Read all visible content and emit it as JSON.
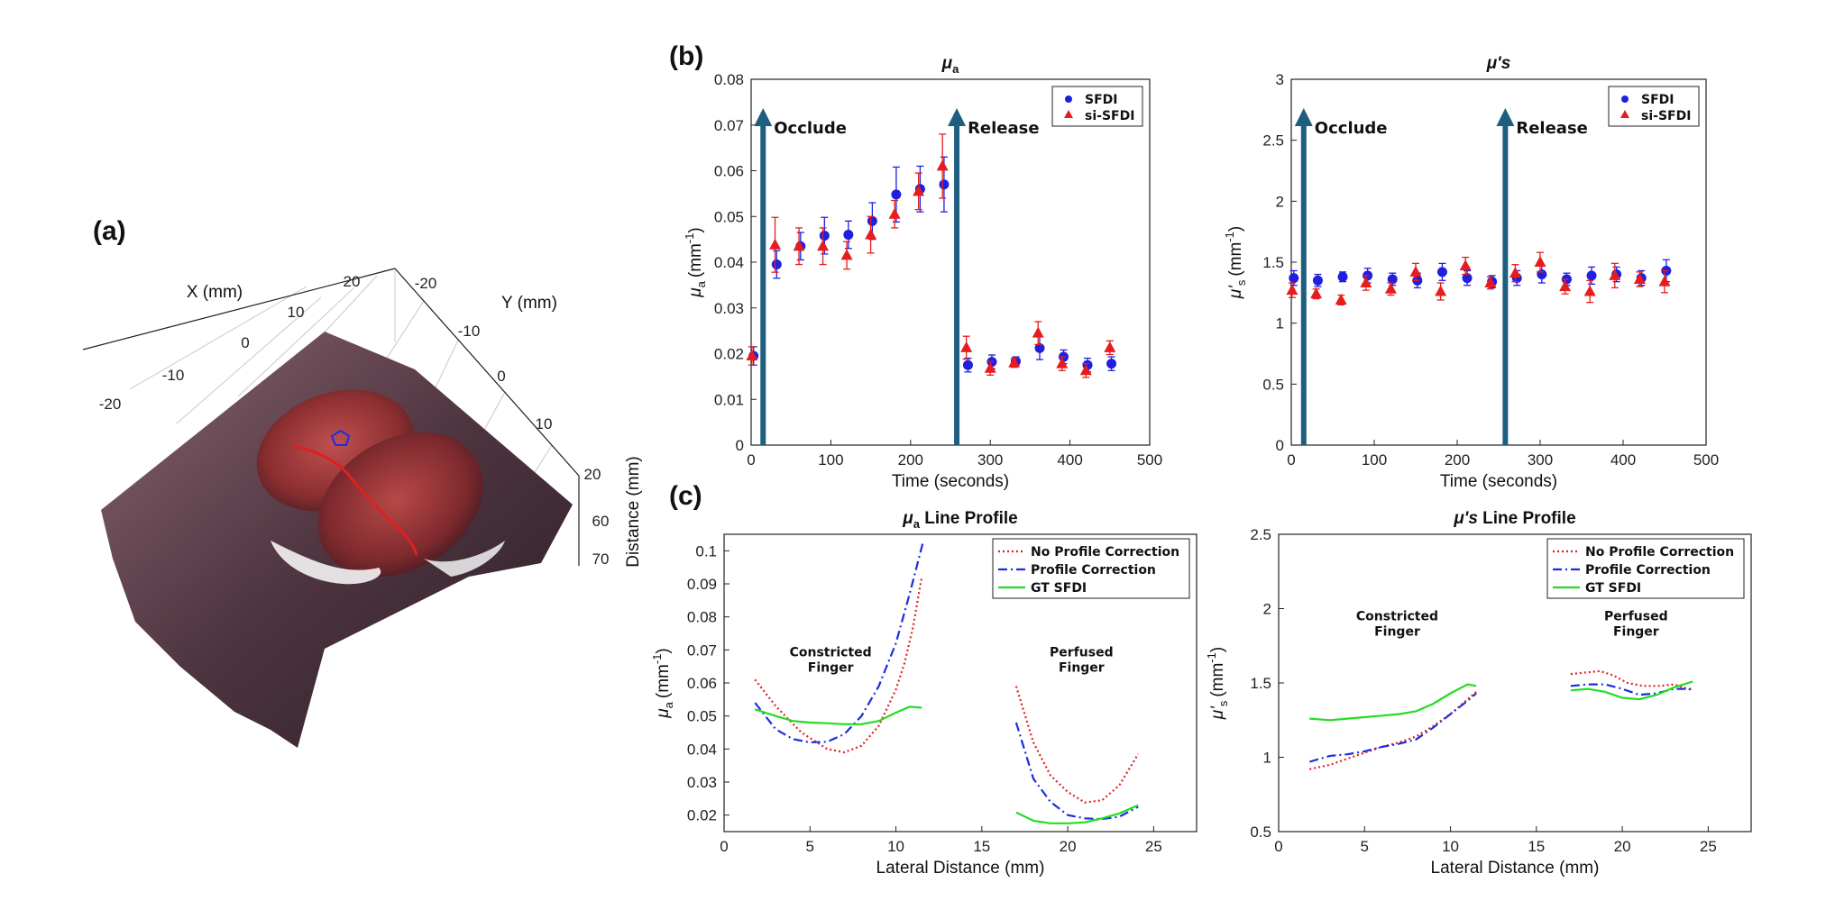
{
  "figure": {
    "panel_labels": [
      "(a)",
      "(b)",
      "(c)"
    ]
  },
  "panel_a": {
    "x_label": "X (mm)",
    "y_label": "Y (mm)",
    "z_label": "Distance (mm)",
    "x_ticks": [
      "-20",
      "-10",
      "0",
      "10",
      "20"
    ],
    "y_ticks": [
      "-20",
      "-10",
      "0",
      "10",
      "20"
    ],
    "z_ticks": [
      "60",
      "70"
    ]
  },
  "colors": {
    "sfdi": "#1f1fe0",
    "si_sfdi": "#e81c1c",
    "arrow": "#1e5f80",
    "no_corr": "#e02020",
    "corr": "#1a2ee0",
    "gt": "#22dd22"
  },
  "chart_data": [
    {
      "id": "b-left",
      "type": "scatter",
      "title_main": "μ",
      "title_sub": "a",
      "xlabel": "Time (seconds)",
      "ylabel_main": "μ",
      "ylabel_sub": "a",
      "ylabel_unit": "(mm",
      "ylabel_exp": "-1",
      "ylabel_close": ")",
      "xlim": [
        0,
        500
      ],
      "ylim": [
        0,
        0.08
      ],
      "xticks": [
        0,
        100,
        200,
        300,
        400,
        500
      ],
      "yticks": [
        0,
        0.01,
        0.02,
        0.03,
        0.04,
        0.05,
        0.06,
        0.07,
        0.08
      ],
      "legend": [
        "SFDI",
        "si-SFDI"
      ],
      "annotations": [
        {
          "text": "Occlude",
          "x": 15
        },
        {
          "text": "Release",
          "x": 258
        }
      ],
      "series": [
        {
          "name": "SFDI",
          "x": [
            3,
            32,
            62,
            92,
            122,
            152,
            182,
            212,
            242,
            272,
            302,
            332,
            362,
            392,
            422,
            452
          ],
          "y": [
            0.0195,
            0.0395,
            0.0435,
            0.0458,
            0.046,
            0.049,
            0.0548,
            0.056,
            0.057,
            0.0175,
            0.0182,
            0.0183,
            0.0212,
            0.0193,
            0.0175,
            0.0178
          ],
          "err": [
            0.002,
            0.003,
            0.003,
            0.004,
            0.003,
            0.004,
            0.006,
            0.005,
            0.006,
            0.0015,
            0.0015,
            0.001,
            0.0025,
            0.0015,
            0.0015,
            0.0015
          ]
        },
        {
          "name": "si-SFDI",
          "x": [
            1,
            30,
            60,
            90,
            120,
            150,
            180,
            210,
            240,
            270,
            300,
            330,
            360,
            390,
            420,
            450
          ],
          "y": [
            0.0195,
            0.0438,
            0.0435,
            0.0435,
            0.0415,
            0.046,
            0.0505,
            0.0555,
            0.061,
            0.0213,
            0.0168,
            0.018,
            0.0245,
            0.0178,
            0.0163,
            0.0213
          ],
          "err": [
            0.002,
            0.006,
            0.004,
            0.004,
            0.003,
            0.004,
            0.003,
            0.004,
            0.007,
            0.0025,
            0.0015,
            0.001,
            0.0025,
            0.0015,
            0.0015,
            0.0015
          ]
        }
      ]
    },
    {
      "id": "b-right",
      "type": "scatter",
      "title_main": "μ's",
      "title_sub": "",
      "xlabel": "Time (seconds)",
      "ylabel_main": "μ'",
      "ylabel_sub": "s",
      "ylabel_unit": "(mm",
      "ylabel_exp": "-1",
      "ylabel_close": ")",
      "xlim": [
        0,
        500
      ],
      "ylim": [
        0,
        3
      ],
      "xticks": [
        0,
        100,
        200,
        300,
        400,
        500
      ],
      "yticks": [
        0,
        0.5,
        1,
        1.5,
        2,
        2.5,
        3
      ],
      "legend": [
        "SFDI",
        "si-SFDI"
      ],
      "annotations": [
        {
          "text": "Occlude",
          "x": 15
        },
        {
          "text": "Release",
          "x": 258
        }
      ],
      "series": [
        {
          "name": "SFDI",
          "x": [
            3,
            32,
            62,
            92,
            122,
            152,
            182,
            212,
            242,
            272,
            302,
            332,
            362,
            392,
            422,
            452
          ],
          "y": [
            1.37,
            1.35,
            1.38,
            1.39,
            1.36,
            1.35,
            1.42,
            1.37,
            1.34,
            1.37,
            1.4,
            1.36,
            1.39,
            1.4,
            1.37,
            1.43
          ],
          "err": [
            0.06,
            0.05,
            0.04,
            0.06,
            0.05,
            0.06,
            0.07,
            0.06,
            0.05,
            0.06,
            0.07,
            0.05,
            0.07,
            0.06,
            0.06,
            0.09
          ]
        },
        {
          "name": "si-SFDI",
          "x": [
            1,
            30,
            60,
            90,
            120,
            150,
            180,
            210,
            240,
            270,
            300,
            330,
            360,
            390,
            420,
            450
          ],
          "y": [
            1.27,
            1.24,
            1.19,
            1.33,
            1.28,
            1.42,
            1.26,
            1.47,
            1.33,
            1.41,
            1.5,
            1.3,
            1.26,
            1.39,
            1.36,
            1.34
          ],
          "err": [
            0.06,
            0.04,
            0.04,
            0.06,
            0.05,
            0.07,
            0.07,
            0.07,
            0.05,
            0.07,
            0.08,
            0.06,
            0.09,
            0.1,
            0.06,
            0.09
          ]
        }
      ]
    },
    {
      "id": "c-left",
      "type": "line",
      "title_main": "μ",
      "title_sub": "a",
      "title_rest": " Line Profile",
      "xlabel": "Lateral Distance (mm)",
      "ylabel_main": "μ",
      "ylabel_sub": "a",
      "ylabel_unit": "(mm",
      "ylabel_exp": "-1",
      "ylabel_close": ")",
      "xlim": [
        0,
        27.5
      ],
      "ylim": [
        0.015,
        0.105
      ],
      "xticks": [
        0,
        5,
        10,
        15,
        20,
        25
      ],
      "yticks": [
        0.02,
        0.03,
        0.04,
        0.05,
        0.06,
        0.07,
        0.08,
        0.09,
        0.1
      ],
      "legend": [
        "No Profile Correction",
        "Profile Correction",
        "GT SFDI"
      ],
      "annotations": [
        {
          "lines": [
            "Constricted",
            "Finger"
          ],
          "x": 6.2,
          "y": 0.068
        },
        {
          "lines": [
            "Perfused",
            "Finger"
          ],
          "x": 20.8,
          "y": 0.068
        }
      ],
      "series": [
        {
          "name": "No Profile Correction",
          "style": "dotted",
          "segments": [
            {
              "x": [
                1.8,
                3,
                4.5,
                6,
                7,
                8,
                9,
                10,
                10.5,
                11,
                11.5
              ],
              "y": [
                0.061,
                0.053,
                0.045,
                0.04,
                0.039,
                0.041,
                0.047,
                0.058,
                0.066,
                0.077,
                0.092
              ]
            },
            {
              "x": [
                17,
                18,
                19,
                20,
                21,
                22,
                23,
                24.1
              ],
              "y": [
                0.059,
                0.042,
                0.032,
                0.027,
                0.0238,
                0.0245,
                0.029,
                0.0385
              ]
            }
          ]
        },
        {
          "name": "Profile Correction",
          "style": "dashdot",
          "segments": [
            {
              "x": [
                1.8,
                3,
                4,
                5,
                6,
                7,
                8,
                9,
                10,
                10.8,
                11.6
              ],
              "y": [
                0.054,
                0.046,
                0.043,
                0.042,
                0.0422,
                0.0445,
                0.05,
                0.059,
                0.072,
                0.087,
                0.103
              ]
            },
            {
              "x": [
                17,
                18,
                19,
                20,
                21,
                22,
                23,
                24.1
              ],
              "y": [
                0.048,
                0.031,
                0.024,
                0.02,
                0.019,
                0.0188,
                0.0195,
                0.0225
              ]
            }
          ]
        },
        {
          "name": "GT SFDI",
          "style": "solid",
          "segments": [
            {
              "x": [
                1.8,
                3,
                4,
                5,
                6,
                7,
                8,
                9,
                10,
                10.8,
                11.5
              ],
              "y": [
                0.052,
                0.05,
                0.0485,
                0.048,
                0.0478,
                0.0475,
                0.0475,
                0.0485,
                0.051,
                0.0528,
                0.0525
              ]
            },
            {
              "x": [
                17,
                18,
                19,
                20,
                21,
                22,
                23,
                24.1
              ],
              "y": [
                0.0208,
                0.0183,
                0.0175,
                0.0175,
                0.0178,
                0.019,
                0.0205,
                0.023
              ]
            }
          ]
        }
      ]
    },
    {
      "id": "c-right",
      "type": "line",
      "title_main": "μ's",
      "title_sub": "",
      "title_rest": " Line Profile",
      "xlabel": "Lateral Distance (mm)",
      "ylabel_main": "μ'",
      "ylabel_sub": "s",
      "ylabel_unit": "(mm",
      "ylabel_exp": "-1",
      "ylabel_close": ")",
      "xlim": [
        0,
        27.5
      ],
      "ylim": [
        0.5,
        2.5
      ],
      "xticks": [
        0,
        5,
        10,
        15,
        20,
        25
      ],
      "yticks": [
        0.5,
        1,
        1.5,
        2,
        2.5
      ],
      "legend": [
        "No Profile Correction",
        "Profile Correction",
        "GT SFDI"
      ],
      "annotations": [
        {
          "lines": [
            "Constricted",
            "Finger"
          ],
          "x": 6.9,
          "y": 1.92
        },
        {
          "lines": [
            "Perfused",
            "Finger"
          ],
          "x": 20.8,
          "y": 1.92
        }
      ],
      "series": [
        {
          "name": "No Profile Correction",
          "style": "dotted",
          "segments": [
            {
              "x": [
                1.8,
                3,
                4,
                5,
                6,
                7,
                8,
                9,
                10,
                11,
                11.5
              ],
              "y": [
                0.92,
                0.95,
                0.99,
                1.03,
                1.07,
                1.1,
                1.14,
                1.21,
                1.29,
                1.39,
                1.44
              ]
            },
            {
              "x": [
                17,
                17.8,
                18.7,
                19.5,
                20.3,
                21.2,
                22.2,
                23,
                24.1
              ],
              "y": [
                1.56,
                1.57,
                1.58,
                1.55,
                1.5,
                1.48,
                1.48,
                1.49,
                1.45
              ]
            }
          ]
        },
        {
          "name": "Profile Correction",
          "style": "dashdot",
          "segments": [
            {
              "x": [
                1.8,
                3,
                4,
                5,
                6,
                7,
                8,
                9,
                10,
                11,
                11.5
              ],
              "y": [
                0.97,
                1.01,
                1.02,
                1.04,
                1.07,
                1.09,
                1.12,
                1.2,
                1.29,
                1.38,
                1.43
              ]
            },
            {
              "x": [
                17,
                18,
                19,
                20,
                21,
                22,
                23,
                24.1
              ],
              "y": [
                1.48,
                1.49,
                1.49,
                1.46,
                1.42,
                1.43,
                1.46,
                1.46
              ]
            }
          ]
        },
        {
          "name": "GT SFDI",
          "style": "solid",
          "segments": [
            {
              "x": [
                1.8,
                3,
                4,
                5,
                6,
                7,
                8,
                9,
                10,
                11,
                11.5
              ],
              "y": [
                1.26,
                1.25,
                1.26,
                1.27,
                1.28,
                1.29,
                1.31,
                1.36,
                1.43,
                1.49,
                1.48
              ]
            },
            {
              "x": [
                17,
                18,
                19,
                20,
                21,
                22,
                23,
                24.1
              ],
              "y": [
                1.45,
                1.46,
                1.44,
                1.4,
                1.39,
                1.42,
                1.47,
                1.51
              ]
            }
          ]
        }
      ]
    }
  ]
}
